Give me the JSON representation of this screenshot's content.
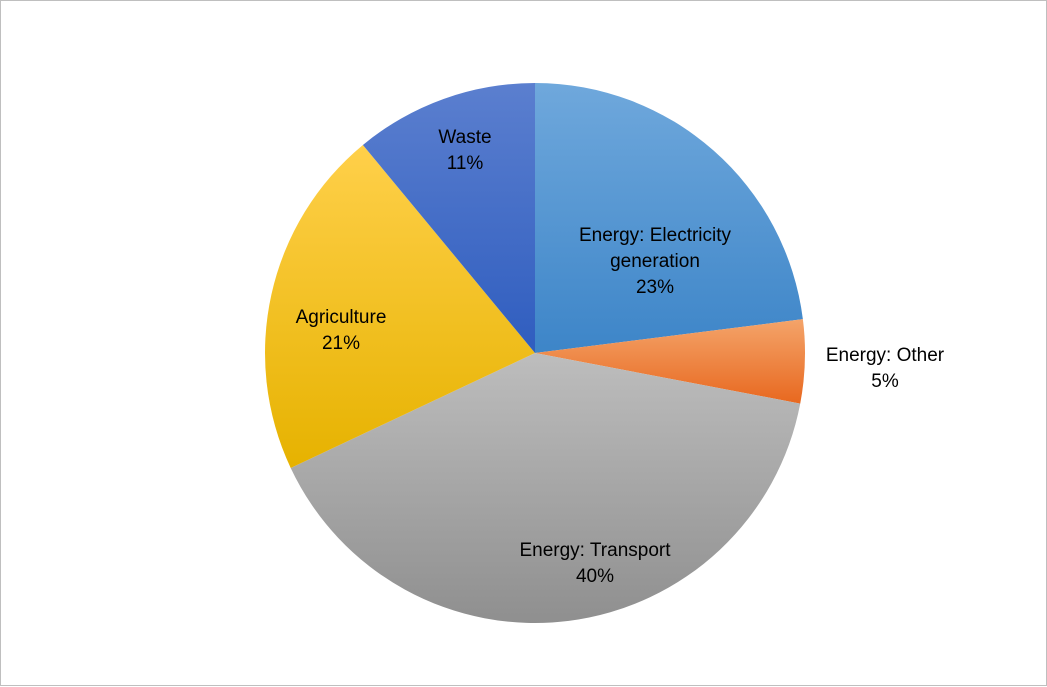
{
  "chart_data": {
    "type": "pie",
    "title": "",
    "slices": [
      {
        "label_lines": [
          "Energy: Electricity",
          "generation"
        ],
        "value": 23,
        "value_label": "23%",
        "color_light": "#6fa8dc",
        "color_dark": "#3d85c8"
      },
      {
        "label_lines": [
          "Energy: Other"
        ],
        "value": 5,
        "value_label": "5%",
        "color_light": "#f4a46a",
        "color_dark": "#e8681f"
      },
      {
        "label_lines": [
          "Energy: Transport"
        ],
        "value": 40,
        "value_label": "40%",
        "color_light": "#bdbdbd",
        "color_dark": "#8f8f8f"
      },
      {
        "label_lines": [
          "Agriculture"
        ],
        "value": 21,
        "value_label": "21%",
        "color_light": "#ffd04a",
        "color_dark": "#e6b200"
      },
      {
        "label_lines": [
          "Waste"
        ],
        "value": 11,
        "value_label": "11%",
        "color_light": "#5b7fcf",
        "color_dark": "#2f5dbf"
      }
    ],
    "start_angle_deg": 0,
    "direction": "clockwise",
    "legend": "none",
    "labels": "data labels on slices"
  }
}
